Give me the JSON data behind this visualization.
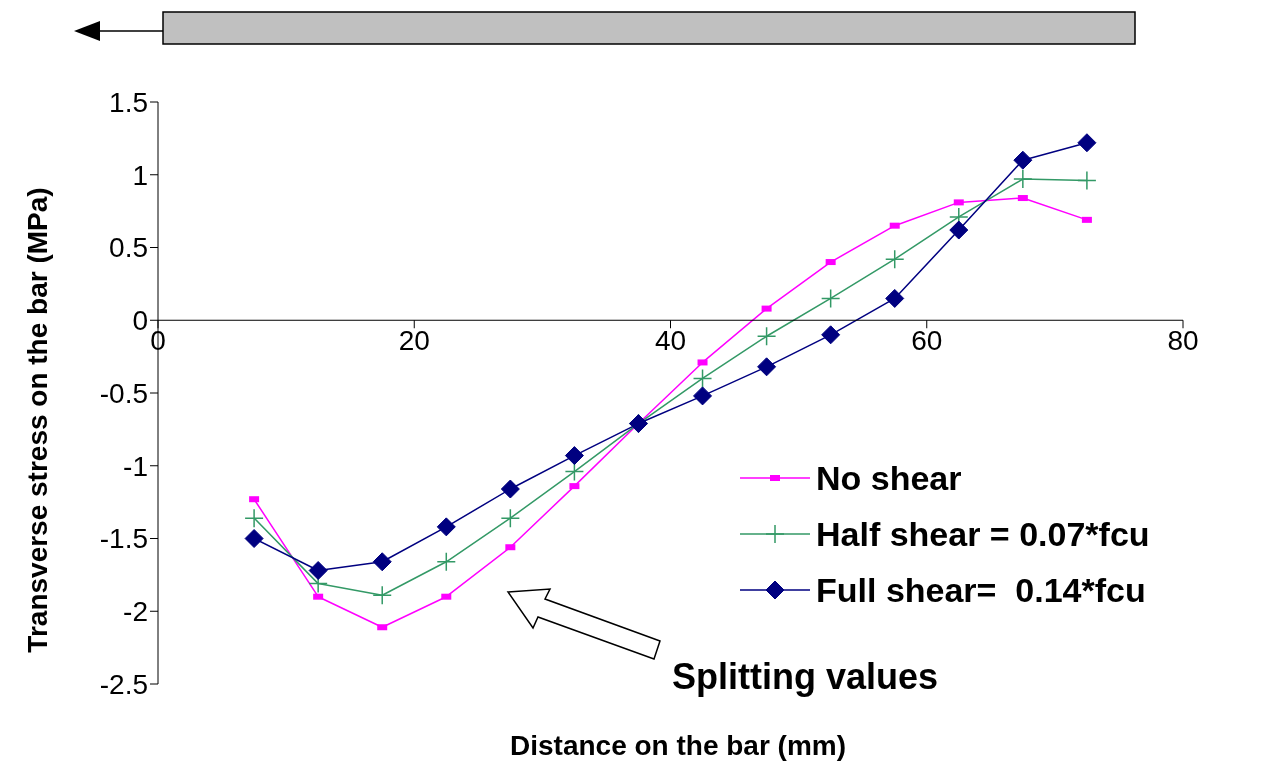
{
  "chart_data": {
    "type": "line",
    "xlabel": "Distance on the bar (mm)",
    "ylabel": "Transverse stress on the bar (MPa)",
    "x": [
      7.5,
      12.5,
      17.5,
      22.5,
      27.5,
      32.5,
      37.5,
      42.5,
      47.5,
      52.5,
      57.5,
      62.5,
      67.5,
      72.5
    ],
    "series": [
      {
        "name": "No shear",
        "color": "#ff00ff",
        "marker": "square",
        "values": [
          -1.23,
          -1.9,
          -2.11,
          -1.9,
          -1.56,
          -1.14,
          -0.71,
          -0.29,
          0.08,
          0.4,
          0.65,
          0.81,
          0.84,
          0.69
        ]
      },
      {
        "name": "Half shear = 0.07*fcu",
        "color": "#339966",
        "marker": "cross",
        "values": [
          -1.36,
          -1.81,
          -1.89,
          -1.66,
          -1.36,
          -1.04,
          -0.71,
          -0.4,
          -0.11,
          0.15,
          0.42,
          0.71,
          0.97,
          0.96
        ]
      },
      {
        "name": "Full shear=  0.14*fcu",
        "color": "#000080",
        "marker": "diamond",
        "values": [
          -1.5,
          -1.72,
          -1.66,
          -1.42,
          -1.16,
          -0.93,
          -0.71,
          -0.52,
          -0.32,
          -0.1,
          0.15,
          0.62,
          1.1,
          1.22
        ]
      }
    ],
    "xlim": [
      0,
      80
    ],
    "xticks": [
      0,
      20,
      40,
      60,
      80
    ],
    "ylim": [
      -2.5,
      1.5
    ],
    "yticks": [
      -2.5,
      -2,
      -1.5,
      -1,
      -0.5,
      0,
      0.5,
      1,
      1.5
    ],
    "grid": false,
    "legend": "right",
    "annotations": [
      "Splitting values"
    ]
  }
}
